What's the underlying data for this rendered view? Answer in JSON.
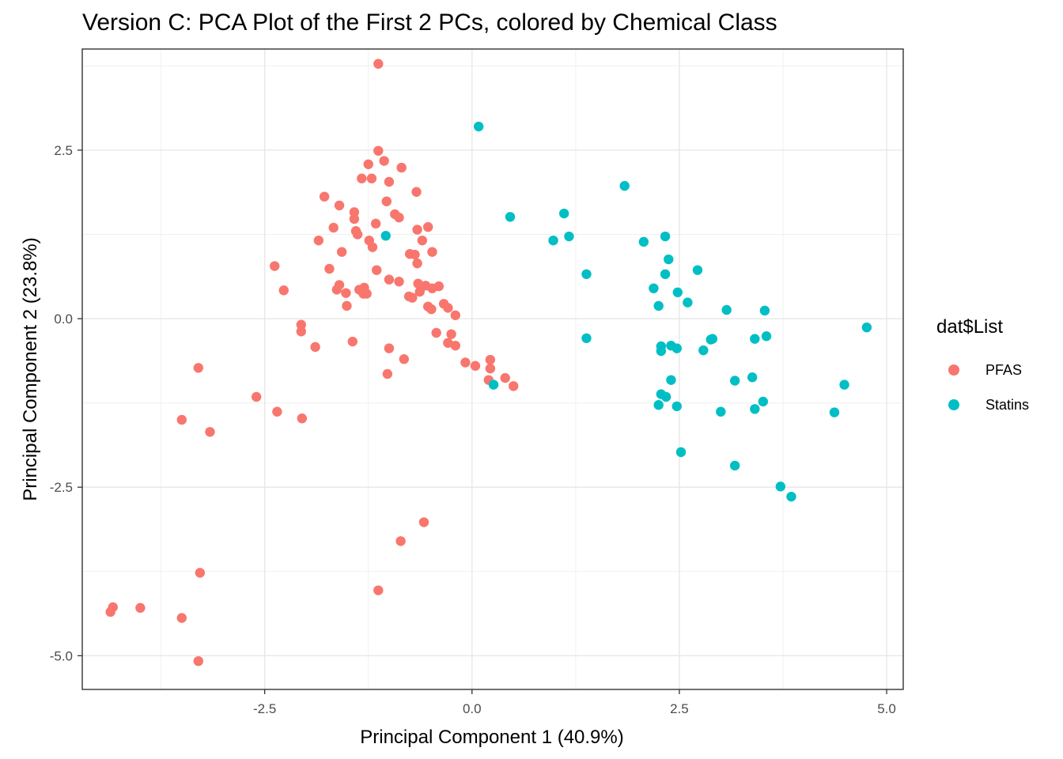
{
  "chart_data": {
    "type": "scatter",
    "title": "Version C: PCA Plot of the First 2 PCs, colored by Chemical Class",
    "xlabel": "Principal Component 1 (40.9%)",
    "ylabel": "Principal Component 2 (23.8%)",
    "xlim": [
      -4.7,
      5.2
    ],
    "ylim": [
      -5.5,
      4.0
    ],
    "x_ticks": [
      -2.5,
      0.0,
      2.5,
      5.0
    ],
    "x_tick_labels": [
      "-2.5",
      "0.0",
      "2.5",
      "5.0"
    ],
    "y_ticks": [
      2.5,
      0.0,
      -2.5,
      -5.0
    ],
    "y_tick_labels": [
      "2.5",
      "0.0",
      "-2.5",
      "-5.0"
    ],
    "grid": true,
    "legend_title": "dat$List",
    "legend_position": "right",
    "series": [
      {
        "name": "PFAS",
        "color": "#f8766d",
        "points": [
          [
            -1.13,
            3.78
          ],
          [
            -1.13,
            2.49
          ],
          [
            -1.06,
            2.34
          ],
          [
            -1.25,
            2.29
          ],
          [
            -1.21,
            2.08
          ],
          [
            -1.33,
            2.08
          ],
          [
            -0.85,
            2.24
          ],
          [
            -1.0,
            2.03
          ],
          [
            -0.67,
            1.88
          ],
          [
            -1.03,
            1.74
          ],
          [
            -0.93,
            1.55
          ],
          [
            -0.88,
            1.5
          ],
          [
            -1.78,
            1.81
          ],
          [
            -1.6,
            1.68
          ],
          [
            -1.42,
            1.58
          ],
          [
            -1.42,
            1.48
          ],
          [
            -1.67,
            1.35
          ],
          [
            -1.4,
            1.3
          ],
          [
            -1.16,
            1.41
          ],
          [
            -1.85,
            1.16
          ],
          [
            -1.24,
            1.16
          ],
          [
            -1.38,
            1.25
          ],
          [
            -1.2,
            1.06
          ],
          [
            -1.57,
            0.99
          ],
          [
            -0.66,
            1.32
          ],
          [
            -0.53,
            1.36
          ],
          [
            -0.6,
            1.16
          ],
          [
            -0.75,
            0.96
          ],
          [
            -0.69,
            0.95
          ],
          [
            -0.48,
            0.99
          ],
          [
            -0.66,
            0.82
          ],
          [
            -2.38,
            0.78
          ],
          [
            -1.72,
            0.74
          ],
          [
            -1.15,
            0.72
          ],
          [
            -1.0,
            0.58
          ],
          [
            -0.88,
            0.55
          ],
          [
            -1.6,
            0.5
          ],
          [
            -1.63,
            0.43
          ],
          [
            -1.52,
            0.38
          ],
          [
            -1.36,
            0.43
          ],
          [
            -1.31,
            0.37
          ],
          [
            -1.3,
            0.46
          ],
          [
            -1.27,
            0.37
          ],
          [
            -0.65,
            0.52
          ],
          [
            -0.56,
            0.49
          ],
          [
            -0.48,
            0.45
          ],
          [
            -0.4,
            0.48
          ],
          [
            -0.63,
            0.4
          ],
          [
            -0.76,
            0.33
          ],
          [
            -0.72,
            0.31
          ],
          [
            -2.27,
            0.42
          ],
          [
            -1.51,
            0.19
          ],
          [
            -0.53,
            0.18
          ],
          [
            -0.49,
            0.14
          ],
          [
            -0.34,
            0.22
          ],
          [
            -0.29,
            0.16
          ],
          [
            -0.2,
            0.05
          ],
          [
            -2.06,
            -0.09
          ],
          [
            -2.06,
            -0.19
          ],
          [
            -0.43,
            -0.21
          ],
          [
            -0.25,
            -0.23
          ],
          [
            -1.44,
            -0.34
          ],
          [
            -0.29,
            -0.36
          ],
          [
            -0.2,
            -0.4
          ],
          [
            -1.89,
            -0.42
          ],
          [
            -1.0,
            -0.44
          ],
          [
            -0.82,
            -0.6
          ],
          [
            -0.08,
            -0.65
          ],
          [
            0.04,
            -0.7
          ],
          [
            0.22,
            -0.61
          ],
          [
            0.22,
            -0.74
          ],
          [
            -1.02,
            -0.82
          ],
          [
            0.4,
            -0.88
          ],
          [
            0.2,
            -0.91
          ],
          [
            0.5,
            -1.0
          ],
          [
            -3.3,
            -0.73
          ],
          [
            -2.6,
            -1.16
          ],
          [
            -2.35,
            -1.38
          ],
          [
            -2.05,
            -1.48
          ],
          [
            -3.5,
            -1.5
          ],
          [
            -3.16,
            -1.68
          ],
          [
            -0.58,
            -3.02
          ],
          [
            -0.86,
            -3.3
          ],
          [
            -3.28,
            -3.77
          ],
          [
            -1.13,
            -4.03
          ],
          [
            -4.33,
            -4.28
          ],
          [
            -4.36,
            -4.35
          ],
          [
            -4.0,
            -4.29
          ],
          [
            -3.5,
            -4.44
          ],
          [
            -3.3,
            -5.08
          ]
        ]
      },
      {
        "name": "Statins",
        "color": "#00bfc4",
        "points": [
          [
            0.08,
            2.85
          ],
          [
            1.84,
            1.97
          ],
          [
            1.11,
            1.56
          ],
          [
            0.46,
            1.51
          ],
          [
            1.17,
            1.22
          ],
          [
            0.98,
            1.16
          ],
          [
            2.07,
            1.14
          ],
          [
            2.33,
            1.22
          ],
          [
            -1.04,
            1.23
          ],
          [
            1.38,
            0.66
          ],
          [
            2.37,
            0.88
          ],
          [
            2.33,
            0.66
          ],
          [
            2.72,
            0.72
          ],
          [
            2.19,
            0.45
          ],
          [
            2.48,
            0.39
          ],
          [
            2.6,
            0.24
          ],
          [
            2.25,
            0.19
          ],
          [
            3.07,
            0.13
          ],
          [
            3.53,
            0.12
          ],
          [
            4.76,
            -0.13
          ],
          [
            1.38,
            -0.29
          ],
          [
            2.88,
            -0.31
          ],
          [
            2.9,
            -0.3
          ],
          [
            3.41,
            -0.3
          ],
          [
            3.55,
            -0.26
          ],
          [
            2.28,
            -0.41
          ],
          [
            2.4,
            -0.4
          ],
          [
            2.47,
            -0.44
          ],
          [
            2.28,
            -0.48
          ],
          [
            2.79,
            -0.47
          ],
          [
            3.17,
            -0.92
          ],
          [
            3.38,
            -0.87
          ],
          [
            2.4,
            -0.91
          ],
          [
            0.26,
            -0.98
          ],
          [
            4.49,
            -0.98
          ],
          [
            2.28,
            -1.12
          ],
          [
            2.34,
            -1.16
          ],
          [
            2.25,
            -1.28
          ],
          [
            2.47,
            -1.3
          ],
          [
            3.51,
            -1.23
          ],
          [
            3.41,
            -1.34
          ],
          [
            3.0,
            -1.38
          ],
          [
            4.37,
            -1.39
          ],
          [
            2.52,
            -1.98
          ],
          [
            3.17,
            -2.18
          ],
          [
            3.72,
            -2.49
          ],
          [
            3.85,
            -2.64
          ]
        ]
      }
    ]
  }
}
